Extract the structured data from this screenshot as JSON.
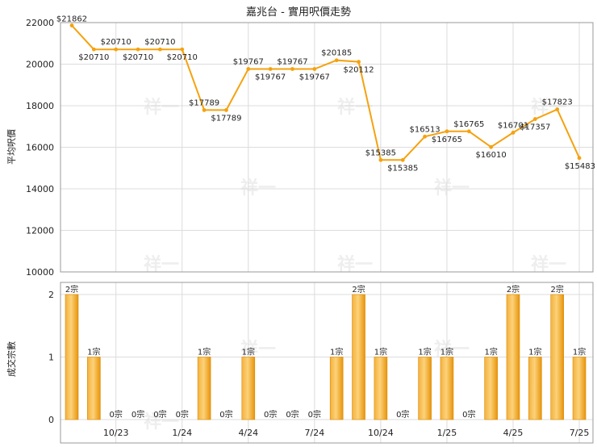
{
  "chart_data": [
    {
      "type": "line",
      "title": "嘉兆台 - 實用呎價走勢",
      "ylabel": "平均呎價",
      "ylim": [
        10000,
        22000
      ],
      "yticks": [
        10000,
        12000,
        14000,
        16000,
        18000,
        20000,
        22000
      ],
      "grid": true,
      "series": [
        {
          "values": [
            21862,
            20710,
            20710,
            20710,
            20710,
            20710,
            17789,
            17789,
            19767,
            19767,
            19767,
            19767,
            20185,
            20112,
            15385,
            15385,
            16513,
            16765,
            16765,
            16010,
            16701,
            17357,
            17823,
            15483
          ],
          "labels": [
            "$21862",
            "$20710",
            "$20710",
            "$20710",
            "$20710",
            "$20710",
            "$17789",
            "$17789",
            "$19767",
            "$19767",
            "$19767",
            "$19767",
            "$20185",
            "$20112",
            "$15385",
            "$15385",
            "$16513",
            "$16765",
            "$16765",
            "$16010",
            "$16701",
            "$17357",
            "$17823",
            "$15483"
          ]
        }
      ],
      "color": "#f5a20f"
    },
    {
      "type": "bar",
      "ylabel": "成交宗數",
      "ylim": [
        0,
        2
      ],
      "yticks": [
        0,
        1,
        2
      ],
      "grid": true,
      "categories": [
        "10/23",
        "1/24",
        "4/24",
        "7/24",
        "10/24",
        "1/25",
        "4/25",
        "7/25"
      ],
      "values": [
        2,
        1,
        0,
        0,
        0,
        0,
        1,
        0,
        1,
        0,
        0,
        0,
        1,
        2,
        1,
        0,
        1,
        1,
        0,
        1,
        2,
        1,
        2,
        1
      ],
      "labels": [
        "2宗",
        "1宗",
        "0宗",
        "0宗",
        "0宗",
        "0宗",
        "1宗",
        "0宗",
        "1宗",
        "0宗",
        "0宗",
        "0宗",
        "1宗",
        "2宗",
        "1宗",
        "0宗",
        "1宗",
        "1宗",
        "0宗",
        "1宗",
        "2宗",
        "1宗",
        "2宗",
        "1宗"
      ],
      "color": "#f5a20f"
    }
  ],
  "watermark": "祥一"
}
